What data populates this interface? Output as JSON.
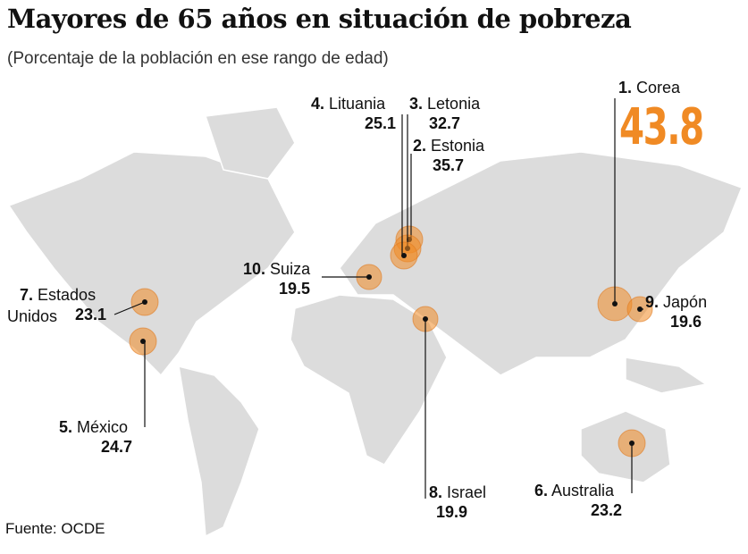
{
  "title": "Mayores de 65 años en situación de pobreza",
  "subtitle": "(Porcentaje de la población en ese rango de edad)",
  "source": "Fuente: OCDE",
  "points": [
    {
      "rank": "1.",
      "name": "Corea",
      "value": 43.8
    },
    {
      "rank": "2.",
      "name": "Estonia",
      "value": 35.7
    },
    {
      "rank": "3.",
      "name": "Letonia",
      "value": 32.7
    },
    {
      "rank": "4.",
      "name": "Lituania",
      "value": 25.1
    },
    {
      "rank": "5.",
      "name": "México",
      "value": 24.7
    },
    {
      "rank": "6.",
      "name": "Australia",
      "value": 23.2
    },
    {
      "rank": "7.",
      "name": "Estados Unidos",
      "value": 23.1
    },
    {
      "rank": "8.",
      "name": "Israel",
      "value": 19.9
    },
    {
      "rank": "9.",
      "name": "Japón",
      "value": 19.6
    },
    {
      "rank": "10.",
      "name": "Suiza",
      "value": 19.5
    }
  ]
}
